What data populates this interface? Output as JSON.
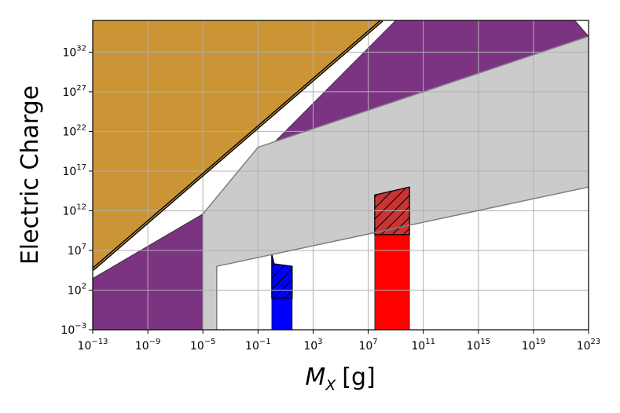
{
  "chart_data": {
    "type": "area",
    "title": "",
    "xlabel": "[g]",
    "xlabel_symbol": "M",
    "xlabel_subscript": "X",
    "ylabel": "Electric Charge",
    "x_scale": "log",
    "y_scale": "log",
    "xlim": [
      1e-13,
      1e+23
    ],
    "ylim": [
      0.001,
      1e+36
    ],
    "grid": true,
    "x_ticks": [
      {
        "base": "10",
        "exp": "−13",
        "value": 1e-13
      },
      {
        "base": "10",
        "exp": "−9",
        "value": 1e-09
      },
      {
        "base": "10",
        "exp": "−5",
        "value": 1e-05
      },
      {
        "base": "10",
        "exp": "−1",
        "value": 0.1
      },
      {
        "base": "10",
        "exp": "3",
        "value": 1000.0
      },
      {
        "base": "10",
        "exp": "7",
        "value": 10000000.0
      },
      {
        "base": "10",
        "exp": "11",
        "value": 100000000000.0
      },
      {
        "base": "10",
        "exp": "15",
        "value": 1000000000000000.0
      },
      {
        "base": "10",
        "exp": "19",
        "value": 1e+19
      },
      {
        "base": "10",
        "exp": "23",
        "value": 1e+23
      }
    ],
    "y_ticks": [
      {
        "base": "10",
        "exp": "−3",
        "value": 0.001
      },
      {
        "base": "10",
        "exp": "2",
        "value": 100.0
      },
      {
        "base": "10",
        "exp": "7",
        "value": 10000000.0
      },
      {
        "base": "10",
        "exp": "12",
        "value": 1000000000000.0
      },
      {
        "base": "10",
        "exp": "17",
        "value": 1e+17
      },
      {
        "base": "10",
        "exp": "22",
        "value": 1e+22
      },
      {
        "base": "10",
        "exp": "27",
        "value": 1e+27
      },
      {
        "base": "10",
        "exp": "32",
        "value": 1e+32
      }
    ],
    "colors": {
      "tan": "#CB9535",
      "purple": "#7C3482",
      "gray": "#CBCBCB",
      "blue": "#0000FF",
      "red": "#FF0000",
      "dark_red": "#CC3333",
      "grid": "#B0B0B0",
      "black_line": "#000000",
      "thin_line": "#808080"
    },
    "regions": [
      {
        "name": "tan-region",
        "color": "tan",
        "points": [
          [
            1e-13,
            40000.0
          ],
          [
            100000000.0,
            1e+36
          ],
          [
            1e-13,
            1e+36
          ]
        ]
      },
      {
        "name": "purple-region",
        "color": "purple",
        "points": [
          [
            1e-13,
            0.001
          ],
          [
            1e-05,
            0.001
          ],
          [
            1e-05,
            400000000000.0
          ],
          [
            1e-13,
            3000.0
          ]
        ]
      },
      {
        "name": "purple-band",
        "color": "purple",
        "points": [
          [
            1e-05,
            400000000000.0
          ],
          [
            1000000000.0,
            1e+36
          ],
          [
            1e+22,
            1e+36
          ],
          [
            1e+23,
            1e+34
          ]
        ]
      },
      {
        "name": "gray-region",
        "color": "gray",
        "points": [
          [
            1e-05,
            -0.001
          ],
          [
            1e-05,
            400000000000.0
          ],
          [
            0.1,
            1e+20
          ],
          [
            1e+23,
            1e+34
          ],
          [
            1e+23,
            1000000000000000.0
          ],
          [
            0.0001,
            100000.0
          ],
          [
            0.0001,
            0.001
          ]
        ]
      },
      {
        "name": "blue-bar",
        "color": "blue",
        "points": [
          [
            1.0,
            0.001
          ],
          [
            1.0,
            3000000.0
          ],
          [
            1.5,
            200000.0
          ],
          [
            30.0,
            100000.0
          ],
          [
            30.0,
            0.001
          ]
        ]
      },
      {
        "name": "blue-hatched-box",
        "color": "blue",
        "hatched": true,
        "points": [
          [
            1.0,
            10.0
          ],
          [
            1.0,
            3000000.0
          ],
          [
            1.5,
            200000.0
          ],
          [
            30.0,
            100000.0
          ],
          [
            30.0,
            10.0
          ]
        ]
      },
      {
        "name": "red-bar",
        "color": "red",
        "points": [
          [
            30000000.0,
            0.001
          ],
          [
            30000000.0,
            100000000000000.0
          ],
          [
            10000000000.0,
            1000000000000000.0
          ],
          [
            10000000000.0,
            0.001
          ]
        ]
      },
      {
        "name": "red-hatched-box",
        "color": "dark_red",
        "hatched": true,
        "points": [
          [
            30000000.0,
            1000000000.0
          ],
          [
            30000000.0,
            100000000000000.0
          ],
          [
            10000000000.0,
            1000000000000000.0
          ],
          [
            10000000000.0,
            1000000000.0
          ]
        ]
      }
    ],
    "lines": [
      {
        "name": "black-boundary-line",
        "color": "black_line",
        "width": 4,
        "points": [
          [
            1e-13,
            40000.0
          ],
          [
            100000000.0,
            1e+36
          ]
        ]
      },
      {
        "name": "tan-inner-line",
        "color": "tan",
        "width": 1.2,
        "points": [
          [
            1e-13,
            40000.0
          ],
          [
            100000000.0,
            1e+36
          ]
        ]
      },
      {
        "name": "gray-upper-line",
        "color": "thin_line",
        "width": 1.5,
        "points": [
          [
            1e-05,
            400000000000.0
          ],
          [
            0.1,
            1e+20
          ],
          [
            1e+23,
            1e+34
          ]
        ]
      },
      {
        "name": "gray-lower-line",
        "color": "thin_line",
        "width": 1.5,
        "points": [
          [
            0.0001,
            0.001
          ],
          [
            0.0001,
            100000.0
          ],
          [
            1e+23,
            1000000000000000.0
          ]
        ]
      }
    ]
  }
}
